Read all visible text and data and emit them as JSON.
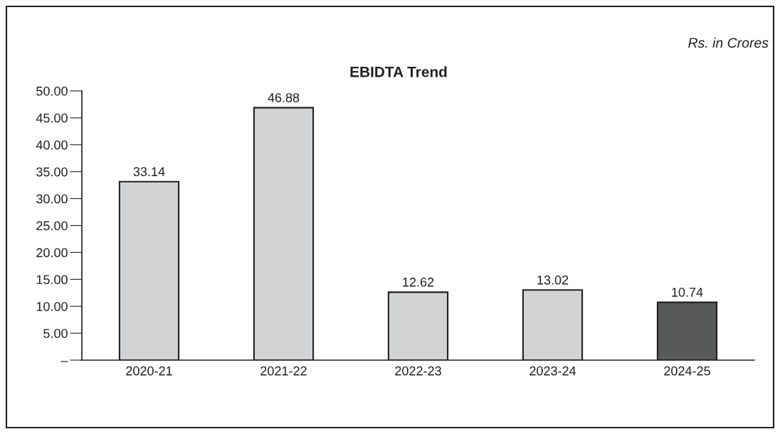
{
  "chart_data": {
    "type": "bar",
    "title": "EBIDTA Trend",
    "annotations": [
      "Rs. in Crores"
    ],
    "categories": [
      "2020-21",
      "2021-22",
      "2022-23",
      "2023-24",
      "2024-25"
    ],
    "values": [
      33.14,
      46.88,
      12.62,
      13.02,
      10.74
    ],
    "colors": [
      "#d1d3d4",
      "#d1d3d4",
      "#d1d3d4",
      "#d1d3d4",
      "#58595b"
    ],
    "ylim": [
      0,
      50
    ],
    "yticks": [
      {
        "value": 0,
        "label": "–"
      },
      {
        "value": 5,
        "label": "5.00"
      },
      {
        "value": 10,
        "label": "10.00"
      },
      {
        "value": 15,
        "label": "15.00"
      },
      {
        "value": 20,
        "label": "20.00"
      },
      {
        "value": 25,
        "label": "25.00"
      },
      {
        "value": 30,
        "label": "30.00"
      },
      {
        "value": 35,
        "label": "35.00"
      },
      {
        "value": 40,
        "label": "40.00"
      },
      {
        "value": 45,
        "label": "45.00"
      },
      {
        "value": 50,
        "label": "50.00"
      }
    ],
    "data_labels": true,
    "grid": false,
    "legend": false
  }
}
